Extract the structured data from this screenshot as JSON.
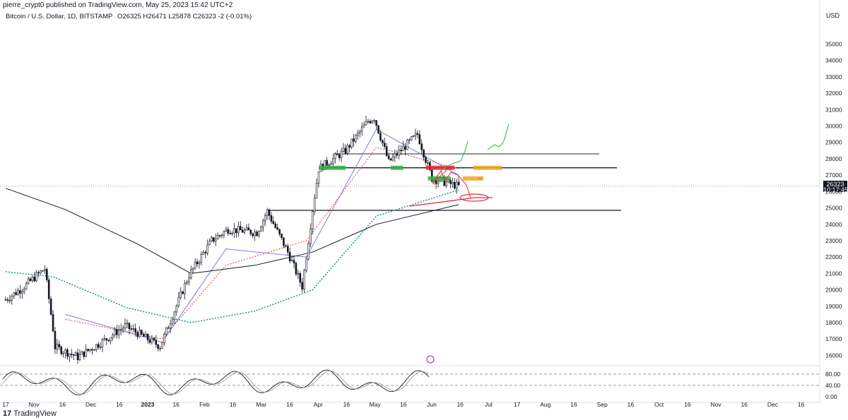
{
  "header": {
    "published": "pierre_crypt0 published on TradingView.com, May 25, 2023 15:42 UTC+2",
    "symbol": "Bitcoin / U.S. Dollar, 1D, BITSTAMP",
    "ohlc": "O26325 H26471 L25878 C26323 -2 (-0.01%)"
  },
  "currency": "USD",
  "price_tag": {
    "price": "26323",
    "countdown": "10:17:45"
  },
  "footer": {
    "brand": "TradingView",
    "logo_glyph": "17"
  },
  "colors": {
    "candle": "#131722",
    "ma_blue": "#7b7bd9",
    "ma_red": "#e04b4b",
    "ma_teal": "#1f9e89",
    "ma_black": "#131722",
    "zone_green": "#2fb344",
    "zone_red": "#e8293b",
    "zone_orange": "#f5a623",
    "drawing_green": "#33b533",
    "drawing_red": "#e8293b"
  },
  "chart_data": {
    "type": "line",
    "title": "Bitcoin / U.S. Dollar, 1D, BITSTAMP",
    "y_axis_ticks": [
      16000,
      17000,
      18000,
      19000,
      20000,
      21000,
      22000,
      23000,
      24000,
      25000,
      26000,
      27000,
      28000,
      29000,
      30000,
      31000,
      32000,
      33000,
      34000,
      35000
    ],
    "ylim": [
      15500,
      36400
    ],
    "x_axis_ticks": [
      "17",
      "Nov",
      "16",
      "Dec",
      "16",
      "2023",
      "16",
      "Feb",
      "16",
      "Mar",
      "16",
      "Apr",
      "16",
      "May",
      "16",
      "Jun",
      "16",
      "Jul",
      "17",
      "Aug",
      "16",
      "Sep",
      "16",
      "Oct",
      "16",
      "Nov",
      "16",
      "Dec",
      "16"
    ],
    "last_price": 26323,
    "price_series_close": [
      {
        "x": "2022-10-17",
        "y": 19400
      },
      {
        "x": "2022-10-25",
        "y": 20100
      },
      {
        "x": "2022-11-05",
        "y": 21300
      },
      {
        "x": "2022-11-09",
        "y": 17600
      },
      {
        "x": "2022-11-10",
        "y": 16500
      },
      {
        "x": "2022-11-21",
        "y": 15900
      },
      {
        "x": "2022-12-05",
        "y": 17000
      },
      {
        "x": "2022-12-14",
        "y": 17800
      },
      {
        "x": "2022-12-31",
        "y": 16550
      },
      {
        "x": "2023-01-14",
        "y": 20900
      },
      {
        "x": "2023-01-25",
        "y": 23000
      },
      {
        "x": "2023-02-02",
        "y": 23700
      },
      {
        "x": "2023-02-16",
        "y": 23500
      },
      {
        "x": "2023-02-21",
        "y": 24800
      },
      {
        "x": "2023-03-03",
        "y": 22300
      },
      {
        "x": "2023-03-10",
        "y": 20200
      },
      {
        "x": "2023-03-15",
        "y": 24900
      },
      {
        "x": "2023-03-18",
        "y": 27400
      },
      {
        "x": "2023-03-31",
        "y": 28500
      },
      {
        "x": "2023-04-11",
        "y": 30300
      },
      {
        "x": "2023-04-14",
        "y": 30500
      },
      {
        "x": "2023-04-21",
        "y": 27800
      },
      {
        "x": "2023-05-05",
        "y": 29500
      },
      {
        "x": "2023-05-12",
        "y": 26800
      },
      {
        "x": "2023-05-25",
        "y": 26323
      }
    ],
    "series": [
      {
        "name": "MA fast (blue)",
        "values": [
          {
            "x": "2022-11-15",
            "y": 18500
          },
          {
            "x": "2023-01-01",
            "y": 16800
          },
          {
            "x": "2023-02-01",
            "y": 22500
          },
          {
            "x": "2023-03-12",
            "y": 22000
          },
          {
            "x": "2023-04-15",
            "y": 29800
          },
          {
            "x": "2023-05-25",
            "y": 27000
          }
        ]
      },
      {
        "name": "MA (red dotted)",
        "values": [
          {
            "x": "2022-11-15",
            "y": 18200
          },
          {
            "x": "2023-01-01",
            "y": 17000
          },
          {
            "x": "2023-02-01",
            "y": 21500
          },
          {
            "x": "2023-03-12",
            "y": 23000
          },
          {
            "x": "2023-04-15",
            "y": 28700
          },
          {
            "x": "2023-05-25",
            "y": 27400
          }
        ]
      },
      {
        "name": "MA (teal dotted)",
        "values": [
          {
            "x": "2022-10-17",
            "y": 21100
          },
          {
            "x": "2022-11-09",
            "y": 20800
          },
          {
            "x": "2022-12-15",
            "y": 18900
          },
          {
            "x": "2023-01-15",
            "y": 18000
          },
          {
            "x": "2023-02-15",
            "y": 18700
          },
          {
            "x": "2023-03-15",
            "y": 20000
          },
          {
            "x": "2023-04-15",
            "y": 24500
          },
          {
            "x": "2023-05-25",
            "y": 26100
          }
        ]
      },
      {
        "name": "MA (black long)",
        "values": [
          {
            "x": "2022-10-17",
            "y": 26200
          },
          {
            "x": "2022-11-15",
            "y": 24900
          },
          {
            "x": "2022-12-20",
            "y": 22800
          },
          {
            "x": "2023-01-15",
            "y": 21000
          },
          {
            "x": "2023-02-15",
            "y": 21500
          },
          {
            "x": "2023-03-15",
            "y": 22300
          },
          {
            "x": "2023-04-15",
            "y": 24000
          },
          {
            "x": "2023-05-25",
            "y": 25200
          }
        ]
      }
    ],
    "horizontal_lines": [
      28300,
      27450,
      24850
    ],
    "zones": [
      {
        "color": "green",
        "y": 27450,
        "from": "2023-03-18",
        "to": "2023-03-31"
      },
      {
        "color": "green",
        "y": 27450,
        "from": "2023-04-22",
        "to": "2023-04-28"
      },
      {
        "color": "red",
        "y": 27450,
        "from": "2023-05-09",
        "to": "2023-05-23"
      },
      {
        "color": "green",
        "y": 26800,
        "from": "2023-05-10",
        "to": "2023-05-21"
      },
      {
        "color": "orange",
        "y": 27450,
        "from": "2023-06-01",
        "to": "2023-06-15"
      },
      {
        "color": "orange",
        "y": 26800,
        "from": "2023-05-27",
        "to": "2023-06-06"
      }
    ],
    "oscillator": {
      "levels": [
        80.0,
        40.0,
        0.0
      ],
      "tick_labels": [
        "80.00",
        "40.00",
        "0.00"
      ]
    },
    "grid": false
  }
}
